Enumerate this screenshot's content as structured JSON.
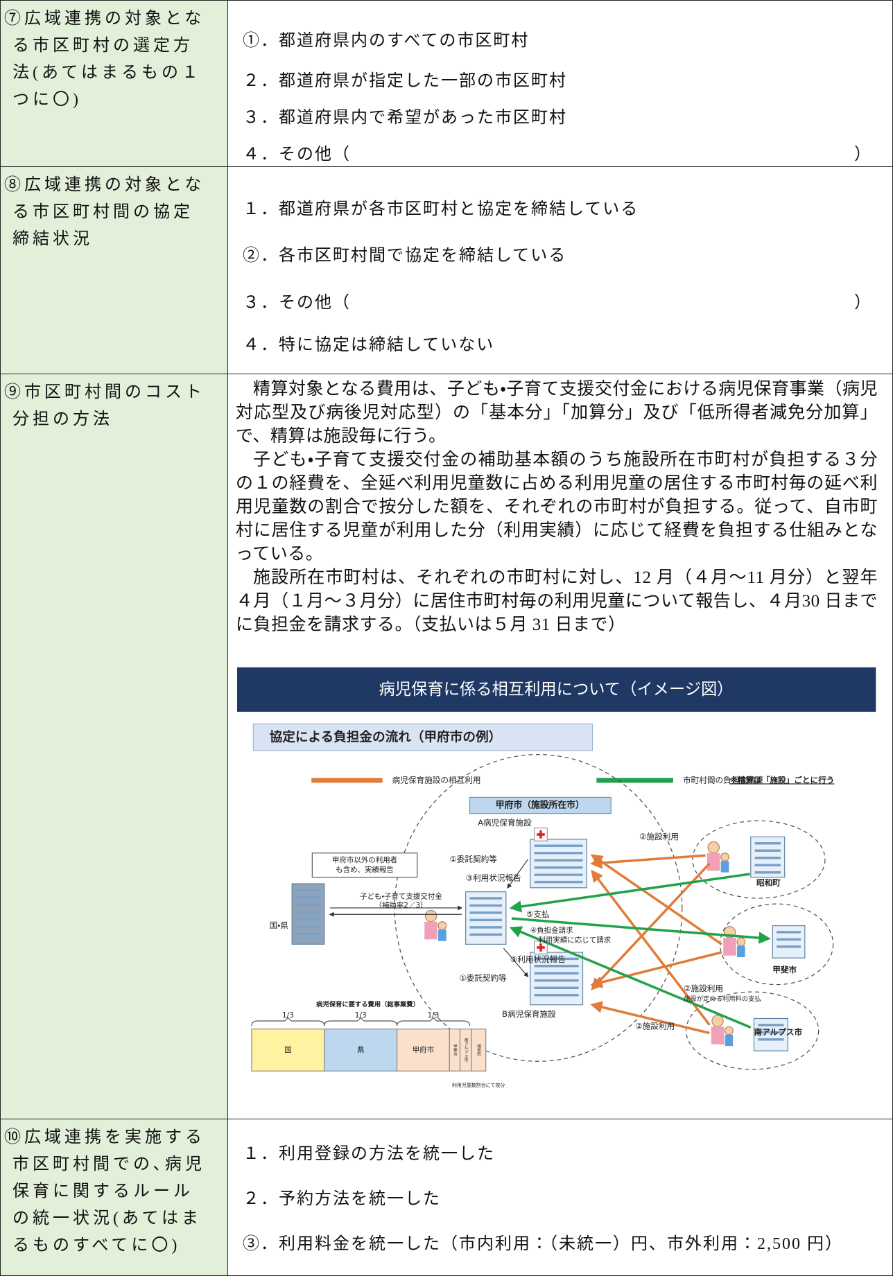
{
  "rows": [
    {
      "label": [
        "⑦広域連携の対象とな",
        "る市区町村の選定方",
        "法(あてはまるもの１",
        "つに〇)"
      ],
      "items": [
        {
          "text": "①．都道府県内のすべての市区町村"
        },
        {
          "text": "２．都道府県が指定した一部の市区町村"
        },
        {
          "text": "３．都道府県内で希望があった市区町村"
        },
        {
          "text": "４．その他（",
          "close": "）"
        }
      ]
    },
    {
      "label": [
        "⑧広域連携の対象とな",
        "る市区町村間の協定",
        "締結状況"
      ],
      "items": [
        {
          "text": "１．都道府県が各市区町村と協定を締結している"
        },
        {
          "text": "②．各市区町村間で協定を締結している"
        },
        {
          "text": "３．その他（",
          "close": "）"
        },
        {
          "text": "４．特に協定は締結していない"
        }
      ]
    },
    {
      "label": [
        "⑨市区町村間のコスト",
        "分担の方法"
      ],
      "paragraphs": [
        "精算対象となる費用は、子ども・子育て支援交付金における病児保育事業（病児対応型及び病後児対応型）の「基本分」「加算分」及び「低所得者減免分加算」で、精算は施設毎に行う。",
        "子ども・子育て支援交付金の補助基本額のうち施設所在市町村が負担する３分の１の経費を、全延べ利用児童数に占める利用児童の居住する市町村毎の延べ利用児童数の割合で按分した額を、それぞれの市町村が負担する。従って、自市町村に居住する児童が利用した分（利用実績）に応じて経費を負担する仕組みとなっている。",
        "施設所在市町村は、それぞれの市町村に対し、12 月（４月～11 月分）と翌年４月（１月～３月分）に居住市町村毎の利用児童について報告し、４月30 日までに負担金を請求する。（支払いは５月 31 日まで）"
      ],
      "diagram": {
        "title": "病児保育に係る相互利用について（イメージ図）",
        "subtitle": "協定による負担金の流れ（甲府市の例）",
        "legend": [
          {
            "label": "病児保育施設の相互利用",
            "color": "#e07b39"
          },
          {
            "label": "市町村間の負担金精算",
            "color": "#22a24a"
          }
        ],
        "note": "※精算は「施設」ごとに行う",
        "city": "甲府市（施設所在市）",
        "facility_a": "A病児保育施設",
        "facility_b": "B病児保育施設",
        "use_labels": [
          "②施設利用",
          "②施設利用",
          "②施設利用"
        ],
        "fee_note": "施設が定める利用料の支払",
        "towns": [
          "昭和町",
          "甲斐市",
          "南アルプス市"
        ],
        "report_note": [
          "甲府市以外の利用者",
          "も含め、実績報告"
        ],
        "contract_labels": [
          "①委託契約等",
          "①委託契約等"
        ],
        "status_labels": [
          "③利用状況報告",
          "③利用状況報告"
        ],
        "grant": [
          "子ども・子育て支援交付金",
          "（補助率2／3）"
        ],
        "national": "国・県",
        "payment": "⑤支払",
        "claim": [
          "④負担金請求",
          "利用実績に応じて請求"
        ],
        "cost": {
          "title": "病児保育に要する費用（総事業費）",
          "fractions": [
            "1/3",
            "1/3",
            "1/3"
          ],
          "segments": [
            {
              "label": "国",
              "color": "#fff2a0"
            },
            {
              "label": "県",
              "color": "#bdd7ee"
            },
            {
              "label": "甲府市",
              "color": "#fbe0cc"
            },
            {
              "label": "甲斐市",
              "color": "#fbe0cc"
            },
            {
              "label": "南アルプス市",
              "color": "#fbe0cc"
            },
            {
              "label": "昭和町",
              "color": "#fbe0cc"
            }
          ],
          "caption": "利用児童数割合にて按分"
        }
      }
    },
    {
      "label": [
        "⑩広域連携を実施する",
        "市区町村間での､病児",
        "保育に関するルール",
        "の統一状況(あてはま",
        "るものすべてに〇)"
      ],
      "items": [
        {
          "text": "１．利用登録の方法を統一した"
        },
        {
          "text": "２．予約方法を統一した"
        },
        {
          "text": "③．利用料金を統一した（市内利用：（未統一）円、市外利用：2,500 円）"
        }
      ]
    }
  ]
}
